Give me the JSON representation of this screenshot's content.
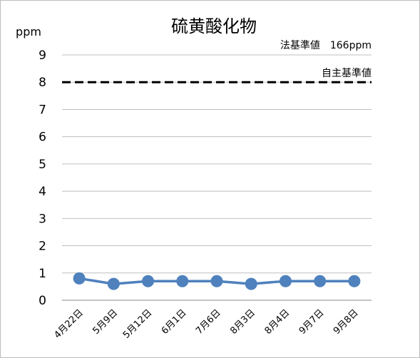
{
  "chart_data": {
    "type": "line",
    "title": "硫黄酸化物",
    "ylabel": "ppm",
    "xlabel": "",
    "ylim": [
      0,
      9
    ],
    "yticks": [
      "0",
      "1",
      "2",
      "3",
      "4",
      "5",
      "6",
      "7",
      "8",
      "9"
    ],
    "categories": [
      "4月22日",
      "5月9日",
      "5月12日",
      "6月1日",
      "7月6日",
      "8月3日",
      "8月4日",
      "9月7日",
      "9月8日"
    ],
    "series": [
      {
        "values": [
          0.8,
          0.6,
          0.7,
          0.7,
          0.7,
          0.6,
          0.7,
          0.7,
          0.7
        ],
        "color": "#4f81bd"
      }
    ],
    "reference_line": {
      "label": "自主基準値",
      "value": 8,
      "color": "#000000",
      "style": "dashed"
    },
    "annotation": "法基準値　166ppm",
    "grid": true,
    "legend": "none"
  }
}
